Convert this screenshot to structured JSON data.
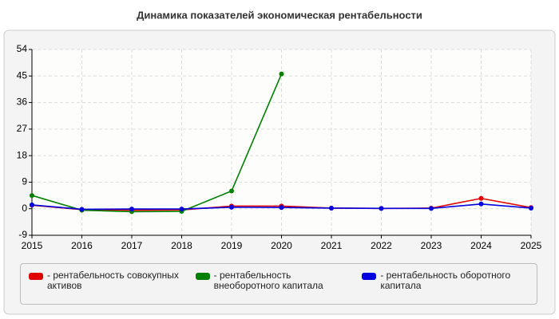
{
  "chart_data": {
    "type": "line",
    "title": "Динамика показателей экономическая рентабельности",
    "x": [
      2015,
      2016,
      2017,
      2018,
      2019,
      2020,
      2021,
      2022,
      2023,
      2024,
      2025
    ],
    "xlim": [
      2015,
      2025
    ],
    "xticks": [
      2015,
      2016,
      2017,
      2018,
      2019,
      2020,
      2021,
      2022,
      2023,
      2024,
      2025
    ],
    "ylim": [
      -9,
      54
    ],
    "yticks": [
      -9,
      0,
      9,
      18,
      27,
      36,
      45,
      54
    ],
    "grid": true,
    "legend": "bottom",
    "series": [
      {
        "name": "- рентабельность совокупных активов",
        "color": "#e00000",
        "values": [
          1.2,
          -0.3,
          -0.5,
          -0.4,
          0.9,
          0.9,
          0.2,
          0.1,
          0.2,
          3.5,
          0.4
        ]
      },
      {
        "name": "- рентабельность внеоборотного капитала",
        "color": "#008000",
        "values": [
          4.5,
          -0.5,
          -1.0,
          -0.9,
          6.0,
          45.7,
          null,
          null,
          null,
          null,
          null
        ]
      },
      {
        "name": "- рентабельность оборотного капитала",
        "color": "#0000e0",
        "values": [
          1.3,
          -0.2,
          -0.1,
          -0.1,
          0.5,
          0.4,
          0.2,
          0.1,
          0.1,
          1.6,
          0.2
        ]
      }
    ]
  }
}
